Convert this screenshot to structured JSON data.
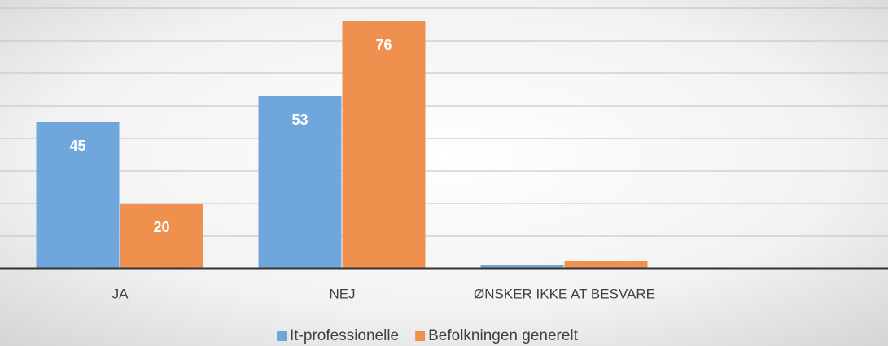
{
  "chart_data": {
    "type": "bar",
    "categories": [
      "JA",
      "NEJ",
      "ØNSKER IKKE AT BESVARE"
    ],
    "series": [
      {
        "name": "It-professionelle",
        "color": "#6fa6dc",
        "values": [
          45,
          53,
          1
        ]
      },
      {
        "name": "Befolkningen generelt",
        "color": "#f0904e",
        "values": [
          20,
          76,
          2.5
        ]
      }
    ],
    "ylim": [
      0,
      80
    ],
    "yticks": [
      0,
      10,
      20,
      30,
      40,
      50,
      60,
      70,
      80
    ],
    "grid": true,
    "legend": "bottom"
  }
}
